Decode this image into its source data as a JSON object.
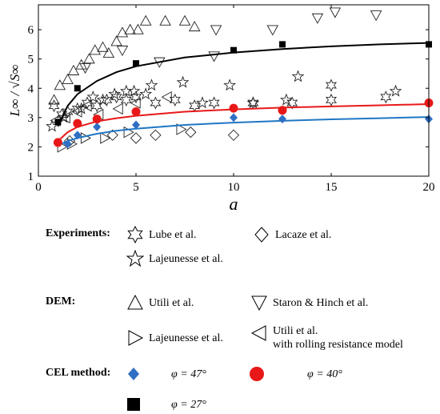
{
  "chart_data": {
    "type": "scatter",
    "xlabel": "a",
    "ylabel": "L∞ / √S∞",
    "xlim": [
      0,
      20
    ],
    "ylim": [
      1,
      6.85
    ],
    "x_ticks": [
      0,
      5,
      10,
      15,
      20
    ],
    "y_ticks": [
      1,
      2,
      3,
      4,
      5,
      6
    ],
    "x_tick_labels": [
      "0",
      "5",
      "10",
      "15",
      "20"
    ],
    "y_tick_labels": [
      "1",
      "2",
      "3",
      "4",
      "5",
      "6"
    ],
    "grid": false,
    "series": [
      {
        "name": "Lube et al.",
        "group": "Experiments",
        "marker": "hexstar",
        "points": [
          [
            0.8,
            3.4
          ],
          [
            1.2,
            3.1
          ],
          [
            1.5,
            3.2
          ],
          [
            2.0,
            3.3
          ],
          [
            2.5,
            3.5
          ],
          [
            3.0,
            3.4
          ],
          [
            3.5,
            3.6
          ],
          [
            4.0,
            3.7
          ],
          [
            4.5,
            3.6
          ],
          [
            5.0,
            3.7
          ],
          [
            6.0,
            3.5
          ],
          [
            7.0,
            3.6
          ],
          [
            8.0,
            3.4
          ],
          [
            9.0,
            3.5
          ],
          [
            11.0,
            3.5
          ],
          [
            13.0,
            3.5
          ],
          [
            15.0,
            4.1
          ],
          [
            15.0,
            3.6
          ],
          [
            17.8,
            3.7
          ]
        ]
      },
      {
        "name": "Lacaze et al.",
        "group": "Experiments",
        "marker": "diamond",
        "points": [
          [
            1.6,
            2.2
          ],
          [
            3.8,
            2.4
          ],
          [
            5.0,
            2.3
          ],
          [
            6.0,
            2.4
          ],
          [
            7.8,
            2.5
          ],
          [
            10.0,
            2.4
          ]
        ]
      },
      {
        "name": "Lajeunesse et al.",
        "group": "Experiments",
        "marker": "star5",
        "points": [
          [
            0.7,
            2.7
          ],
          [
            1.3,
            3.0
          ],
          [
            2.2,
            3.3
          ],
          [
            2.8,
            3.7
          ],
          [
            3.3,
            3.6
          ],
          [
            3.9,
            3.8
          ],
          [
            4.5,
            3.9
          ],
          [
            4.9,
            3.9
          ],
          [
            5.5,
            3.8
          ],
          [
            5.8,
            4.1
          ],
          [
            7.4,
            4.2
          ],
          [
            8.4,
            3.5
          ],
          [
            9.8,
            4.1
          ],
          [
            11.0,
            3.5
          ],
          [
            12.7,
            3.6
          ],
          [
            13.3,
            4.4
          ],
          [
            18.3,
            3.9
          ]
        ]
      },
      {
        "name": "Utili et al.",
        "group": "DEM",
        "marker": "triangle-up",
        "points": [
          [
            0.8,
            3.6
          ],
          [
            1.1,
            4.1
          ],
          [
            1.5,
            4.3
          ],
          [
            1.8,
            4.6
          ],
          [
            2.2,
            4.8
          ],
          [
            2.6,
            5.0
          ],
          [
            2.9,
            5.3
          ],
          [
            3.3,
            5.4
          ],
          [
            3.6,
            5.2
          ],
          [
            4.0,
            5.6
          ],
          [
            4.3,
            5.9
          ],
          [
            4.7,
            6.0
          ],
          [
            5.1,
            6.0
          ],
          [
            5.5,
            6.3
          ],
          [
            6.5,
            6.3
          ],
          [
            7.5,
            6.3
          ],
          [
            8.0,
            6.1
          ]
        ]
      },
      {
        "name": "Staron & Hinch et al.",
        "group": "DEM",
        "marker": "triangle-down",
        "points": [
          [
            2.4,
            4.7
          ],
          [
            4.3,
            5.3
          ],
          [
            6.2,
            4.9
          ],
          [
            9.0,
            5.1
          ],
          [
            9.1,
            6.0
          ],
          [
            12.0,
            6.0
          ],
          [
            14.3,
            6.4
          ],
          [
            15.2,
            6.6
          ],
          [
            17.3,
            6.5
          ]
        ]
      },
      {
        "name": "Lajeunesse et al.",
        "group": "DEM",
        "marker": "triangle-right",
        "points": [
          [
            1.2,
            2.0
          ],
          [
            1.7,
            2.1
          ],
          [
            2.4,
            2.3
          ],
          [
            3.4,
            2.3
          ],
          [
            4.6,
            2.5
          ],
          [
            7.3,
            2.6
          ]
        ]
      },
      {
        "name": "Utili et al. with rolling resistance model",
        "group": "DEM",
        "marker": "triangle-left",
        "points": [
          [
            0.9,
            2.9
          ],
          [
            1.4,
            3.0
          ],
          [
            2.0,
            3.2
          ],
          [
            2.5,
            3.4
          ],
          [
            3.1,
            3.1
          ],
          [
            4.1,
            3.3
          ],
          [
            5.0,
            3.5
          ],
          [
            6.6,
            3.7
          ]
        ]
      },
      {
        "name": "φ = 47°",
        "group": "CEL method",
        "marker": "filled-diamond",
        "color": "#2f6fc4",
        "curve_color": "#1f77c4",
        "points": [
          [
            1,
            2.15
          ],
          [
            1.5,
            2.1
          ],
          [
            2,
            2.4
          ],
          [
            3,
            2.68
          ],
          [
            5,
            2.75
          ],
          [
            10,
            3.0
          ],
          [
            12.5,
            2.95
          ],
          [
            20,
            2.95
          ]
        ],
        "fit": [
          [
            1,
            2.05
          ],
          [
            1.5,
            2.2
          ],
          [
            2,
            2.3
          ],
          [
            3,
            2.45
          ],
          [
            4,
            2.55
          ],
          [
            5,
            2.62
          ],
          [
            7.5,
            2.75
          ],
          [
            10,
            2.83
          ],
          [
            12.5,
            2.89
          ],
          [
            15,
            2.94
          ],
          [
            17.5,
            2.98
          ],
          [
            20,
            3.02
          ]
        ]
      },
      {
        "name": "φ = 40°",
        "group": "CEL method",
        "marker": "filled-circle",
        "color": "#e81818",
        "curve_color": "#e81818",
        "points": [
          [
            1,
            2.15
          ],
          [
            2,
            2.8
          ],
          [
            3,
            2.95
          ],
          [
            5,
            3.2
          ],
          [
            10,
            3.32
          ],
          [
            12.5,
            3.25
          ],
          [
            20,
            3.5
          ]
        ],
        "fit": [
          [
            1,
            2.2
          ],
          [
            1.5,
            2.5
          ],
          [
            2,
            2.68
          ],
          [
            3,
            2.87
          ],
          [
            4,
            2.98
          ],
          [
            5,
            3.06
          ],
          [
            7.5,
            3.2
          ],
          [
            10,
            3.28
          ],
          [
            12.5,
            3.34
          ],
          [
            15,
            3.38
          ],
          [
            17.5,
            3.42
          ],
          [
            20,
            3.46
          ]
        ]
      },
      {
        "name": "φ = 27°",
        "group": "CEL method",
        "marker": "filled-square",
        "color": "#000000",
        "curve_color": "#000000",
        "points": [
          [
            1,
            2.85
          ],
          [
            2,
            4.0
          ],
          [
            5,
            4.85
          ],
          [
            10,
            5.3
          ],
          [
            12.5,
            5.5
          ],
          [
            20,
            5.5
          ]
        ],
        "fit": [
          [
            1,
            2.7
          ],
          [
            1.5,
            3.4
          ],
          [
            2,
            3.8
          ],
          [
            3,
            4.25
          ],
          [
            4,
            4.55
          ],
          [
            5,
            4.75
          ],
          [
            7.5,
            5.05
          ],
          [
            10,
            5.22
          ],
          [
            12.5,
            5.34
          ],
          [
            15,
            5.43
          ],
          [
            17.5,
            5.5
          ],
          [
            20,
            5.55
          ]
        ]
      }
    ]
  },
  "legend": {
    "experiments_label": "Experiments:",
    "dem_label": "DEM:",
    "cel_label": "CEL method:",
    "lube": "Lube et al.",
    "lacaze": "Lacaze et al.",
    "lajeunesse_exp": "Lajeunesse et al.",
    "utili": "Utili et al.",
    "staron": "Staron & Hinch et al.",
    "lajeunesse_dem": "Lajeunesse et al.",
    "utili_rr_line1": "Utili et al.",
    "utili_rr_line2": "with rolling resistance model",
    "phi47": "φ = 47°",
    "phi40": "φ = 40°",
    "phi27": "φ = 27°"
  }
}
